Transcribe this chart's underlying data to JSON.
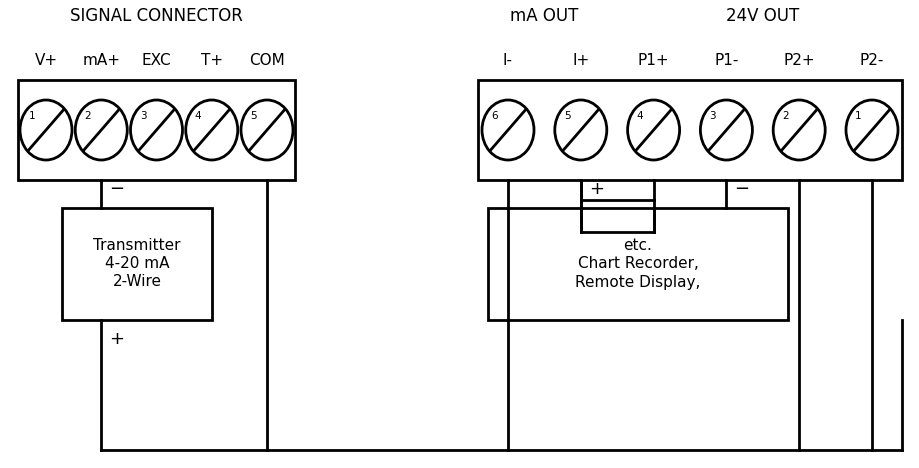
{
  "bg_color": "#ffffff",
  "line_color": "#000000",
  "text_color": "#000000",
  "fig_width": 9.19,
  "fig_height": 4.68,
  "left_connector_label": "SIGNAL CONNECTOR",
  "left_pins": [
    "V+",
    "mA+",
    "EXC",
    "T+",
    "COM"
  ],
  "left_pin_nums": [
    "1",
    "2",
    "3",
    "4",
    "5"
  ],
  "right_group1_label": "mA OUT",
  "right_group2_label": "24V OUT",
  "right_pins": [
    "I-",
    "I+",
    "P1+",
    "P1-",
    "P2+",
    "P2-"
  ],
  "right_pin_nums": [
    "6",
    "5",
    "4",
    "3",
    "2",
    "1"
  ],
  "left_box_label_lines": [
    "2-Wire",
    "4-20 mA",
    "Transmitter"
  ],
  "right_box_label_lines": [
    "Remote Display,",
    "Chart Recorder,",
    "etc."
  ],
  "font_size_header": 12,
  "font_size_pin_label": 11,
  "font_size_pin_num": 7.5,
  "font_size_box": 11,
  "font_size_polarity": 13
}
